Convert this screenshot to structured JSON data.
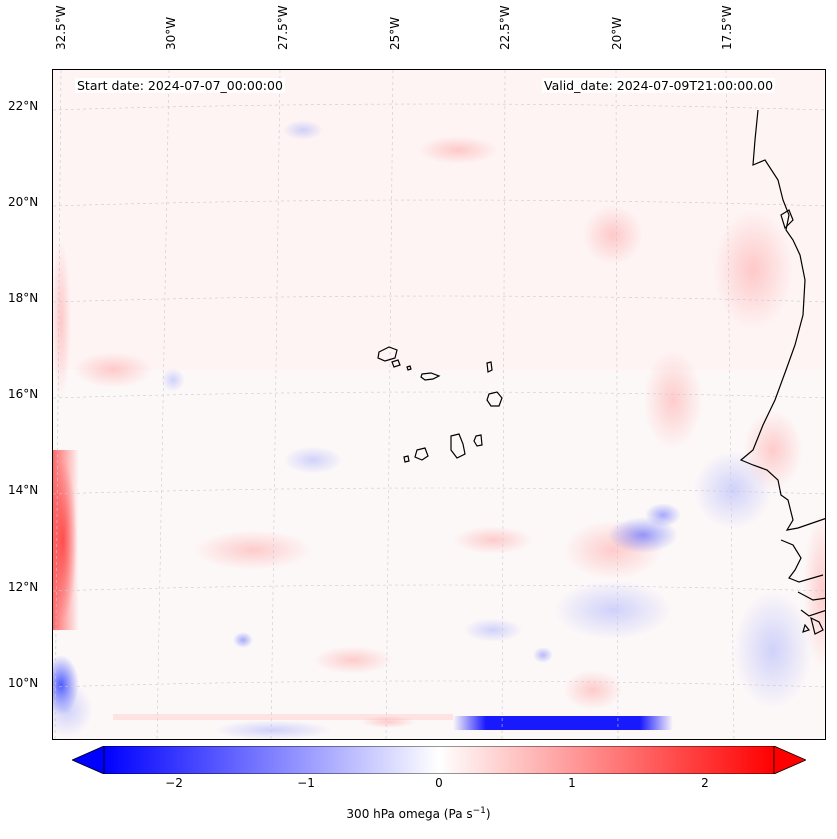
{
  "header": {
    "start_date": "Start date: 2024-07-07_00:00:00",
    "valid_date": "Valid_date: 2024-07-09T21:00:00.00"
  },
  "axes": {
    "lon_labels": [
      "32.5°W",
      "30°W",
      "27.5°W",
      "25°W",
      "22.5°W",
      "20°W",
      "17.5°W"
    ],
    "lat_labels": [
      "22°N",
      "20°N",
      "18°N",
      "16°N",
      "14°N",
      "12°N",
      "10°N"
    ]
  },
  "colorbar": {
    "ticks": [
      "−2",
      "−1",
      "0",
      "1",
      "2"
    ],
    "label_main": "300 hPa omega (Pa s",
    "label_sup": "−1",
    "label_end": ")",
    "range": [
      -2.6,
      2.6
    ],
    "colors": {
      "neg": "#0000ff",
      "mid": "#ffffff",
      "pos": "#ff0000"
    }
  },
  "map": {
    "field": "300 hPa omega",
    "coastline_color": "#000000",
    "grid_color": "#c8c8d8"
  }
}
